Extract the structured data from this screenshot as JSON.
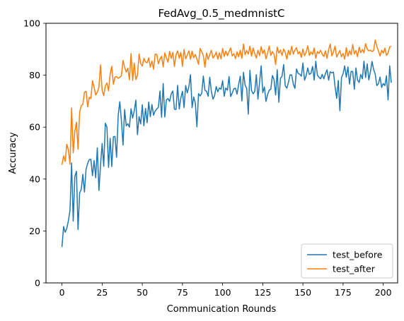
{
  "chart_data": {
    "type": "line",
    "title": "FedAvg_0.5_medmnistC",
    "xlabel": "Communication Rounds",
    "ylabel": "Accuracy",
    "xlim": [
      -9.95,
      208.95
    ],
    "ylim": [
      0,
      100
    ],
    "xticks": [
      0,
      25,
      50,
      75,
      100,
      125,
      150,
      175,
      200
    ],
    "yticks": [
      0,
      20,
      40,
      60,
      80,
      100
    ],
    "grid": false,
    "legend_position": "lower-right",
    "series": [
      {
        "name": "test_before",
        "color": "#1f77b4",
        "values": [
          13.8,
          21.7,
          19.5,
          21.0,
          23.9,
          28.0,
          46.2,
          23.8,
          41.0,
          43.0,
          20.6,
          34.7,
          36.0,
          41.8,
          35.0,
          43.8,
          46.0,
          47.5,
          47.6,
          41.3,
          47.1,
          40.5,
          52.0,
          35.6,
          45.4,
          53.7,
          44.9,
          61.5,
          60.0,
          44.5,
          55.7,
          44.8,
          56.3,
          56.4,
          48.4,
          64.5,
          69.8,
          62.5,
          53.1,
          66.8,
          60.5,
          61.3,
          60.0,
          67.1,
          63.5,
          66.3,
          70.4,
          57.1,
          64.1,
          61.2,
          68.6,
          60.5,
          67.2,
          61.7,
          69.7,
          64.0,
          68.7,
          64.6,
          66.2,
          67.0,
          67.6,
          73.9,
          63.8,
          76.8,
          63.9,
          70.5,
          71.0,
          69.9,
          72.8,
          73.9,
          66.9,
          66.8,
          76.1,
          67.0,
          71.2,
          73.8,
          67.5,
          76.0,
          73.2,
          75.6,
          80.2,
          67.5,
          71.6,
          69.3,
          60.1,
          72.9,
          72.0,
          73.1,
          79.7,
          74.2,
          73.8,
          71.9,
          79.2,
          73.7,
          70.8,
          72.1,
          75.6,
          73.6,
          75.1,
          74.6,
          77.9,
          71.9,
          75.1,
          74.2,
          79.5,
          71.8,
          73.1,
          74.8,
          75.0,
          72.7,
          76.5,
          79.6,
          70.1,
          81.1,
          76.2,
          74.9,
          65.0,
          81.9,
          74.1,
          72.8,
          73.8,
          80.2,
          70.8,
          77.3,
          83.6,
          73.3,
          75.5,
          69.9,
          72.6,
          74.2,
          74.6,
          79.9,
          78.3,
          72.4,
          82.1,
          69.6,
          78.8,
          79.6,
          84.1,
          75.9,
          75.0,
          77.3,
          80.1,
          80.1,
          76.6,
          74.9,
          82.4,
          80.7,
          80.4,
          79.6,
          84.7,
          78.1,
          79.8,
          82.8,
          80.3,
          80.7,
          83.4,
          78.1,
          85.4,
          80.0,
          79.2,
          78.6,
          80.3,
          78.6,
          80.6,
          82.1,
          78.1,
          81.3,
          80.9,
          81.2,
          75.6,
          71.1,
          78.0,
          66.3,
          79.0,
          80.6,
          83.6,
          79.2,
          83.2,
          76.6,
          81.5,
          81.4,
          74.6,
          82.8,
          78.1,
          77.2,
          80.3,
          78.6,
          85.4,
          79.1,
          84.4,
          78.2,
          81.3,
          85.3,
          82.2,
          80.4,
          76.0,
          76.7,
          79.3,
          75.3,
          76.8,
          76.0,
          79.8,
          70.5,
          83.6,
          77.1
        ]
      },
      {
        "name": "test_after",
        "color": "#ff7f0e",
        "values": [
          45.5,
          48.9,
          46.8,
          53.4,
          51.2,
          45.7,
          67.4,
          50.1,
          58.4,
          61.9,
          51.5,
          65.8,
          68.2,
          68.8,
          73.5,
          73.8,
          67.8,
          71.5,
          71.0,
          77.9,
          75.4,
          72.4,
          73.4,
          75.4,
          84.0,
          74.2,
          72.1,
          75.9,
          77.0,
          74.0,
          80.4,
          83.4,
          76.5,
          79.3,
          79.5,
          78.8,
          79.2,
          79.8,
          85.7,
          83.0,
          81.2,
          82.7,
          78.2,
          88.4,
          78.0,
          84.6,
          78.3,
          80.1,
          88.2,
          84.5,
          83.5,
          86.5,
          85.1,
          84.8,
          86.7,
          83.1,
          85.5,
          82.3,
          88.1,
          88.0,
          84.4,
          86.2,
          87.3,
          83.2,
          88.6,
          86.7,
          85.0,
          89.2,
          86.5,
          88.8,
          83.4,
          87.9,
          89.4,
          86.5,
          88.8,
          83.4,
          89.9,
          86.3,
          87.8,
          89.4,
          86.1,
          89.3,
          86.7,
          88.0,
          86.2,
          84.2,
          90.3,
          89.1,
          87.5,
          83.1,
          88.6,
          86.1,
          87.9,
          89.6,
          86.6,
          87.4,
          88.9,
          86.2,
          88.6,
          86.3,
          90.3,
          87.2,
          89.3,
          87.5,
          89.1,
          90.5,
          87.4,
          88.3,
          86.4,
          89.0,
          87.1,
          89.6,
          86.5,
          92.0,
          87.9,
          89.5,
          88.1,
          91.2,
          87.3,
          90.5,
          88.3,
          86.6,
          89.6,
          87.5,
          91.0,
          88.3,
          89.8,
          86.3,
          88.5,
          91.2,
          87.6,
          89.1,
          88.1,
          84.1,
          90.8,
          88.5,
          89.7,
          87.6,
          90.1,
          88.8,
          86.2,
          89.6,
          87.8,
          91.1,
          88.1,
          89.7,
          90.6,
          88.2,
          89.1,
          86.9,
          90.1,
          87.5,
          88.9,
          91.3,
          87.6,
          89.0,
          88.0,
          90.5,
          86.5,
          89.1,
          88.4,
          89.6,
          88.1,
          87.2,
          89.4,
          86.5,
          89.8,
          92.0,
          87.5,
          88.9,
          91.2,
          87.0,
          88.3,
          89.5,
          87.1,
          88.4,
          86.2,
          90.6,
          87.3,
          89.4,
          87.9,
          91.8,
          88.2,
          89.5,
          87.1,
          90.8,
          88.6,
          89.9,
          88.6,
          92.2,
          90.1,
          89.4,
          89.6,
          89.1,
          89.5,
          93.6,
          91.1,
          89.4,
          87.4,
          89.6,
          88.5,
          90.4,
          87.6,
          88.6,
          90.9,
          91.2
        ]
      }
    ]
  }
}
